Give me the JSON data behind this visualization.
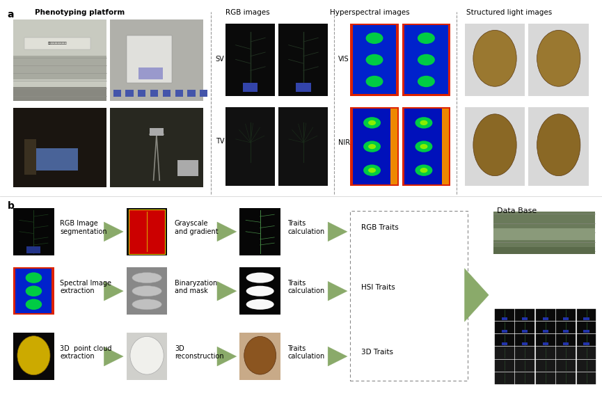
{
  "figsize": [
    8.65,
    5.69
  ],
  "dpi": 100,
  "bg_color": "#ffffff",
  "arrow_color": "#8aaa6a",
  "text_color": "#000000",
  "title_fontsize": 7.5,
  "label_fontsize": 7.0,
  "panel_label_fontsize": 10,
  "panel_a": {
    "label": "a",
    "pheno_title": "Phenotyping platform",
    "rgb_title": "RGB images",
    "hyper_title": "Hyperspectral images",
    "struct_title": "Structured light images",
    "sv_label": "SV",
    "tv_label": "TV",
    "vis_label": "VIS",
    "nir_label": "NIR"
  },
  "panel_b": {
    "label": "b",
    "row1_labels": [
      "RGB Image\nsegmentation",
      "Grayscale\nand gradient",
      "Traits\ncalculation"
    ],
    "row2_labels": [
      "Spectral Image\nextraction",
      "Binaryzation\nand mask",
      "Traits\ncalculation"
    ],
    "row3_labels": [
      "3D  point cloud\nextraction",
      "3D\nreconstruction",
      "Traits\ncalculation"
    ],
    "trait_labels": [
      "RGB Traits",
      "HSI Traits",
      "3D Traits"
    ],
    "database_label": "Data Base"
  }
}
